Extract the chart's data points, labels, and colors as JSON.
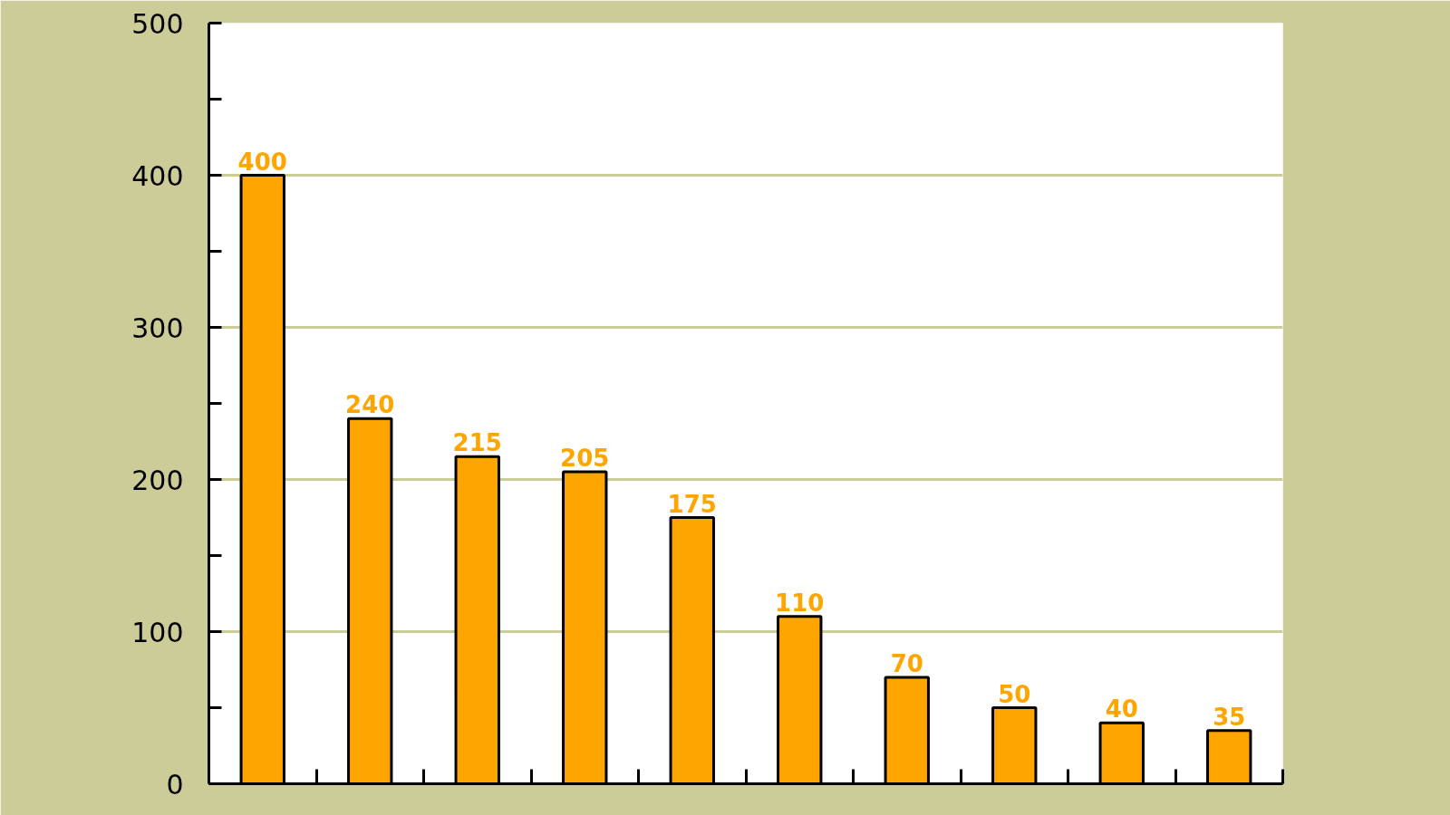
{
  "chart_data": {
    "type": "bar",
    "categories": [
      null,
      null,
      null,
      null,
      null,
      null,
      null,
      null,
      null,
      null
    ],
    "values": [
      400,
      240,
      215,
      205,
      175,
      110,
      70,
      50,
      40,
      35
    ],
    "color": "#ffa500",
    "ylim": [
      0,
      500
    ],
    "yticks": [
      0,
      {
        "value": 50,
        "label": null
      },
      100,
      {
        "value": 150,
        "label": null
      },
      200,
      {
        "value": 250,
        "label": null
      },
      300,
      {
        "value": 350,
        "label": null
      },
      400,
      {
        "value": 450,
        "label": null
      },
      500
    ],
    "grid": "y",
    "tick_labels": "y",
    "data_labels": true
  }
}
